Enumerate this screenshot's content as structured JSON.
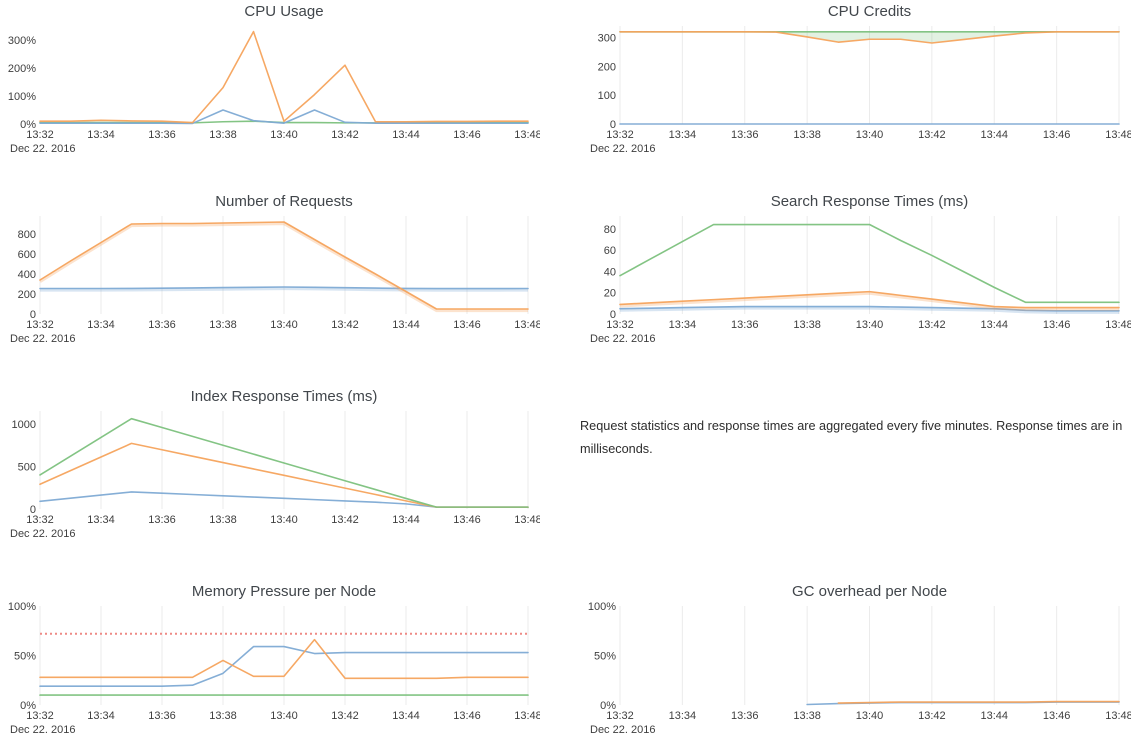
{
  "note": {
    "text": "Request statistics and response times are aggregated every five minutes. Response times are in milliseconds."
  },
  "palette": {
    "blue": "#7eaad4",
    "orange": "#f5a35c",
    "green": "#7cc17d",
    "threshold_red": "#ee8a86"
  },
  "chart_data": [
    {
      "type": "line",
      "title": "CPU Usage",
      "x_ticks": [
        "13:32",
        "13:34",
        "13:36",
        "13:38",
        "13:40",
        "13:42",
        "13:44",
        "13:46",
        "13:48"
      ],
      "x_date": "Dec 22. 2016",
      "x_step_minutes": 1,
      "ylim": [
        0,
        350
      ],
      "yticks": {
        "values": [
          0,
          100,
          200,
          300
        ],
        "labels": [
          "0%",
          "100%",
          "200%",
          "300%"
        ]
      },
      "grid": false,
      "series": [
        {
          "name": "green",
          "color": "#7cc17d",
          "values": [
            5,
            5,
            5,
            5,
            5,
            4,
            8,
            10,
            5,
            5,
            4,
            4,
            5,
            5,
            5,
            5,
            5
          ]
        },
        {
          "name": "blue",
          "color": "#7eaad4",
          "values": [
            3,
            3,
            3,
            3,
            3,
            2,
            50,
            12,
            3,
            50,
            6,
            3,
            3,
            3,
            3,
            3,
            3
          ]
        },
        {
          "name": "orange",
          "color": "#f5a35c",
          "values": [
            10,
            10,
            13,
            11,
            10,
            5,
            130,
            330,
            10,
            105,
            210,
            8,
            8,
            9,
            9,
            10,
            10
          ]
        }
      ]
    },
    {
      "type": "line",
      "title": "CPU Credits",
      "x_ticks": [
        "13:32",
        "13:34",
        "13:36",
        "13:38",
        "13:40",
        "13:42",
        "13:44",
        "13:46",
        "13:48"
      ],
      "x_date": "Dec 22. 2016",
      "x_step_minutes": 1,
      "ylim": [
        0,
        340
      ],
      "yticks": {
        "values": [
          0,
          100,
          200,
          300
        ],
        "labels": [
          "0",
          "100",
          "200",
          "300"
        ]
      },
      "grid": true,
      "fill_between": {
        "upper": 0,
        "lower": 1,
        "color": "rgba(124,193,125,0.22)"
      },
      "series": [
        {
          "name": "green",
          "color": "#7cc17d",
          "values": [
            320,
            320,
            320,
            320,
            320,
            320,
            320,
            320,
            320,
            320,
            320,
            320,
            320,
            320,
            320,
            320,
            320
          ]
        },
        {
          "name": "orange",
          "color": "#f5a35c",
          "values": [
            320,
            320,
            320,
            320,
            320,
            319,
            302,
            284,
            294,
            294,
            281,
            293,
            305,
            316,
            320,
            320,
            320
          ]
        },
        {
          "name": "blue",
          "color": "#7eaad4",
          "values": [
            0,
            0,
            0,
            0,
            0,
            0,
            0,
            0,
            0,
            0,
            0,
            0,
            0,
            0,
            0,
            0,
            0
          ]
        }
      ]
    },
    {
      "type": "line",
      "title": "Number of Requests",
      "x_ticks": [
        "13:32",
        "13:34",
        "13:36",
        "13:38",
        "13:40",
        "13:42",
        "13:44",
        "13:46",
        "13:48"
      ],
      "x_date": "Dec 22. 2016",
      "x_step_minutes": 1,
      "ylim": [
        0,
        980
      ],
      "yticks": {
        "values": [
          0,
          200,
          400,
          600,
          800
        ],
        "labels": [
          "0",
          "200",
          "400",
          "600",
          "800"
        ]
      },
      "grid": true,
      "series": [
        {
          "name": "blue",
          "color": "#7eaad4",
          "soft": true,
          "values": [
            255,
            255,
            255,
            256,
            258,
            261,
            264,
            267,
            270,
            267,
            263,
            259,
            256,
            254,
            254,
            254,
            255
          ]
        },
        {
          "name": "orange",
          "color": "#f5a35c",
          "soft": true,
          "values": [
            340,
            530,
            715,
            900,
            905,
            905,
            910,
            915,
            920,
            745,
            570,
            400,
            225,
            50,
            50,
            50,
            50
          ]
        }
      ]
    },
    {
      "type": "line",
      "title": "Search Response Times (ms)",
      "x_ticks": [
        "13:32",
        "13:34",
        "13:36",
        "13:38",
        "13:40",
        "13:42",
        "13:44",
        "13:46",
        "13:48"
      ],
      "x_date": "Dec 22. 2016",
      "x_step_minutes": 1,
      "ylim": [
        0,
        92
      ],
      "yticks": {
        "values": [
          0,
          20,
          40,
          60,
          80
        ],
        "labels": [
          "0",
          "20",
          "40",
          "60",
          "80"
        ]
      },
      "grid": true,
      "series": [
        {
          "name": "blue",
          "color": "#7eaad4",
          "soft": true,
          "values": [
            5,
            5.5,
            6,
            6.5,
            7,
            7,
            7,
            7,
            7,
            6.5,
            6,
            5.5,
            5,
            3.5,
            3,
            3,
            3
          ]
        },
        {
          "name": "orange",
          "color": "#f5a35c",
          "soft": true,
          "values": [
            9,
            10.5,
            12,
            13.5,
            15,
            16.5,
            18,
            19.5,
            21,
            17.5,
            14,
            10.5,
            7,
            6,
            6,
            6,
            6
          ]
        },
        {
          "name": "green",
          "color": "#7cc17d",
          "values": [
            36,
            52,
            68,
            84,
            84,
            84,
            84,
            84,
            84,
            69,
            55,
            40,
            25,
            11,
            11,
            11,
            11
          ]
        }
      ]
    },
    {
      "type": "line",
      "title": "Index Response Times (ms)",
      "x_ticks": [
        "13:32",
        "13:34",
        "13:36",
        "13:38",
        "13:40",
        "13:42",
        "13:44",
        "13:46",
        "13:48"
      ],
      "x_date": "Dec 22. 2016",
      "x_step_minutes": 1,
      "ylim": [
        0,
        1150
      ],
      "yticks": {
        "values": [
          0,
          500,
          1000
        ],
        "labels": [
          "0",
          "500",
          "1000"
        ]
      },
      "grid": true,
      "series": [
        {
          "name": "blue",
          "color": "#7eaad4",
          "values": [
            90,
            127,
            164,
            200,
            185,
            170,
            155,
            140,
            125,
            110,
            95,
            80,
            60,
            22,
            22,
            22,
            22
          ]
        },
        {
          "name": "orange",
          "color": "#f5a35c",
          "values": [
            290,
            450,
            610,
            770,
            695,
            620,
            545,
            470,
            395,
            320,
            245,
            170,
            95,
            22,
            22,
            22,
            22
          ]
        },
        {
          "name": "green",
          "color": "#7cc17d",
          "values": [
            400,
            620,
            840,
            1060,
            956,
            852,
            748,
            644,
            540,
            436,
            332,
            228,
            124,
            22,
            22,
            22,
            22
          ]
        }
      ]
    },
    {
      "type": "line",
      "title": "Memory Pressure per Node",
      "x_ticks": [
        "13:32",
        "13:34",
        "13:36",
        "13:38",
        "13:40",
        "13:42",
        "13:44",
        "13:46",
        "13:48"
      ],
      "x_date": "Dec 22. 2016",
      "x_step_minutes": 1,
      "ylim": [
        0,
        100
      ],
      "yticks": {
        "values": [
          0,
          50,
          100
        ],
        "labels": [
          "0%",
          "50%",
          "100%"
        ]
      },
      "grid": true,
      "threshold": {
        "value": 72,
        "color": "#ee8a86",
        "style": "dotted"
      },
      "series": [
        {
          "name": "green",
          "color": "#7cc17d",
          "values": [
            10,
            10,
            10,
            10,
            10,
            10,
            10,
            10,
            10,
            10,
            10,
            10,
            10,
            10,
            10,
            10,
            10
          ]
        },
        {
          "name": "blue",
          "color": "#7eaad4",
          "values": [
            19,
            19,
            19,
            19,
            19,
            20,
            32,
            59,
            59,
            52,
            53,
            53,
            53,
            53,
            53,
            53,
            53
          ]
        },
        {
          "name": "orange",
          "color": "#f5a35c",
          "values": [
            28,
            28,
            28,
            28,
            28,
            28,
            45,
            29,
            29,
            66,
            27,
            27,
            27,
            27,
            28,
            28,
            28
          ]
        }
      ]
    },
    {
      "type": "line",
      "title": "GC overhead per Node",
      "x_ticks": [
        "13:32",
        "13:34",
        "13:36",
        "13:38",
        "13:40",
        "13:42",
        "13:44",
        "13:46",
        "13:48"
      ],
      "x_date": "Dec 22. 2016",
      "x_step_minutes": 1,
      "ylim": [
        0,
        100
      ],
      "yticks": {
        "values": [
          0,
          50,
          100
        ],
        "labels": [
          "0%",
          "50%",
          "100%"
        ]
      },
      "grid": true,
      "series": [
        {
          "name": "blue",
          "color": "#7eaad4",
          "values": [
            null,
            null,
            null,
            null,
            null,
            null,
            0.5,
            1.5,
            2,
            2.5,
            2.5,
            2.5,
            2.5,
            2.5,
            3,
            3,
            3
          ]
        },
        {
          "name": "orange",
          "color": "#f5a35c",
          "values": [
            null,
            null,
            null,
            null,
            null,
            null,
            null,
            2,
            2.5,
            3,
            3,
            3,
            3,
            3,
            3.5,
            3.5,
            3.5
          ]
        }
      ]
    }
  ]
}
